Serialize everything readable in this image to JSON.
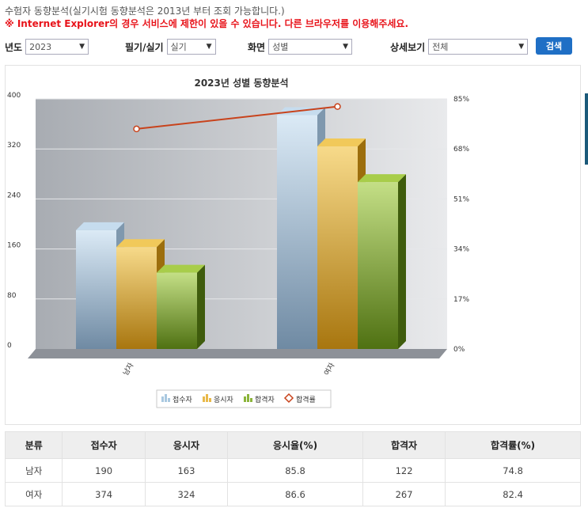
{
  "notice": {
    "line1": "수험자 동향분석(실기시험 동향분석은 2013년 부터 조회 가능합니다.)",
    "line2": "※ Internet Explorer의 경우 서비스에 제한이 있을 수 있습니다. 다른 브라우저를 이용해주세요."
  },
  "filters": {
    "year_label": "년도",
    "year_value": "2023",
    "exam_label": "필기/실기",
    "exam_value": "실기",
    "view_label": "화면",
    "view_value": "성별",
    "detail_label": "상세보기",
    "detail_value": "전체",
    "search_label": "검색"
  },
  "colors": {
    "applicants": "#a9c8e0",
    "takers": "#e8b94a",
    "passers": "#8bb43a",
    "pass_rate": "#c8431c",
    "search_button": "#1f6fc5"
  },
  "chart_data": {
    "type": "bar",
    "title": "2023년 성별 동향분석",
    "categories": [
      "남자",
      "여자"
    ],
    "series": [
      {
        "name": "접수자",
        "values": [
          190,
          374
        ]
      },
      {
        "name": "응시자",
        "values": [
          163,
          324
        ]
      },
      {
        "name": "합격자",
        "values": [
          122,
          267
        ]
      }
    ],
    "line_series": {
      "name": "합격률",
      "values": [
        74.8,
        82.4
      ],
      "axis": "right"
    },
    "ylim": [
      0,
      400
    ],
    "y_ticks": [
      0,
      80,
      160,
      240,
      320,
      400
    ],
    "y2lim": [
      0,
      85
    ],
    "y2_tick_labels": [
      "0%",
      "17%",
      "34%",
      "51%",
      "68%",
      "85%"
    ],
    "grid": true,
    "legend_position": "bottom",
    "legend": [
      "접수자",
      "응시자",
      "합격자",
      "합격률"
    ]
  },
  "table": {
    "headers": [
      "분류",
      "접수자",
      "응시자",
      "응시율(%)",
      "합격자",
      "합격률(%)"
    ],
    "rows": [
      [
        "남자",
        "190",
        "163",
        "85.8",
        "122",
        "74.8"
      ],
      [
        "여자",
        "374",
        "324",
        "86.6",
        "267",
        "82.4"
      ]
    ]
  }
}
